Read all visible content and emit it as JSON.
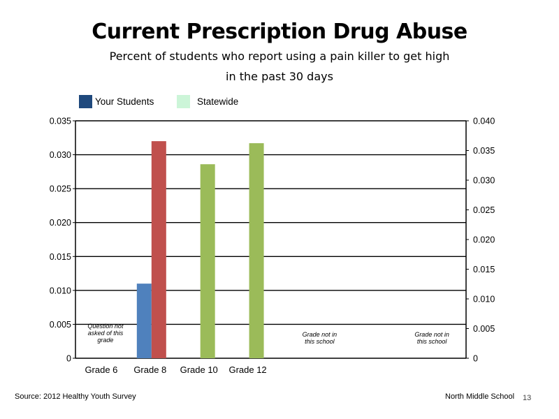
{
  "page": {
    "source": "Source: 2012 Healthy Youth Survey",
    "school": "North Middle School",
    "page_number": "13"
  },
  "chart_data": {
    "type": "bar",
    "title": "Current Prescription Drug Abuse",
    "subtitle_line1": "Percent of students who report using a pain killer to get high",
    "subtitle_line2": "in the past 30 days",
    "categories": [
      "Grade 6",
      "Grade 8",
      "Grade 10",
      "Grade 12"
    ],
    "legend": [
      {
        "name": "Your Students",
        "color": "#1f497d"
      },
      {
        "name": "Statewide",
        "color": "#ccf5d8"
      }
    ],
    "series": [
      {
        "name": "Your Students",
        "values": [
          null,
          0.011,
          null,
          null
        ],
        "colors": [
          "#4f81bd",
          "#4f81bd",
          "#4f81bd",
          "#4f81bd"
        ]
      },
      {
        "name": "Statewide",
        "values": [
          null,
          0.032,
          0.0286,
          0.0317
        ],
        "colors": [
          "#9bbb59",
          "#c0504d",
          "#9bbb59",
          "#9bbb59"
        ]
      }
    ],
    "y_left": {
      "min": 0,
      "max": 0.035,
      "ticks": [
        "0",
        "0.005",
        "0.010",
        "0.015",
        "0.020",
        "0.025",
        "0.030",
        "0.035"
      ]
    },
    "y_right": {
      "min": 0,
      "max": 0.04,
      "ticks": [
        "0",
        "0.005",
        "0.010",
        "0.015",
        "0.020",
        "0.025",
        "0.030",
        "0.035",
        "0.040"
      ]
    },
    "gridlines": true,
    "annotations": [
      {
        "lines": [
          "Question not",
          "asked of this",
          "grade"
        ]
      },
      {
        "lines": [
          "Grade not in",
          "this school"
        ]
      },
      {
        "lines": [
          "Grade not in",
          "this school"
        ]
      }
    ]
  }
}
